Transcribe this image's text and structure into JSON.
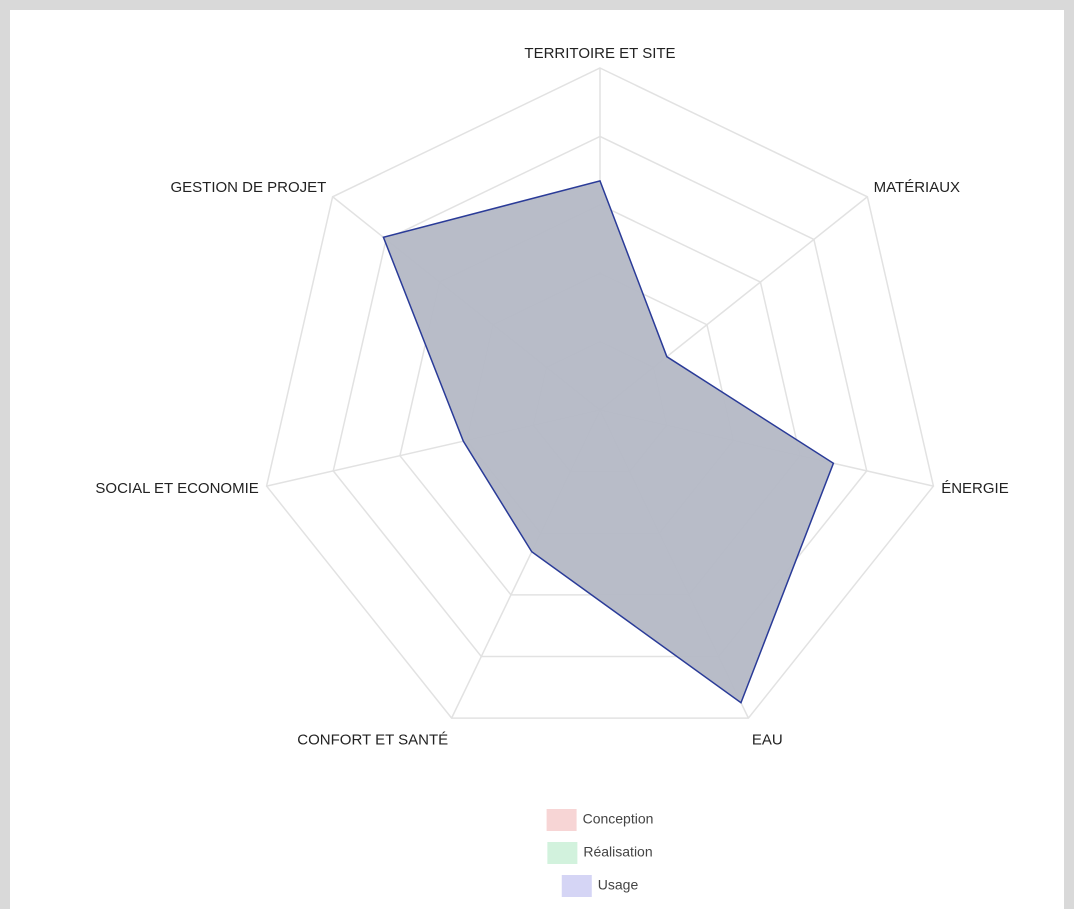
{
  "chart_data": {
    "type": "radar",
    "categories": [
      "TERRITOIRE ET SITE",
      "MATÉRIAUX",
      "ÉNERGIE",
      "EAU",
      "CONFORT ET SANTÉ",
      "SOCIAL ET ECONOMIE",
      "GESTION DE PROJET"
    ],
    "rlim": [
      0,
      100
    ],
    "rticks": [
      20,
      40,
      60,
      80,
      100
    ],
    "grid": true,
    "legend": "bottom",
    "series": [
      {
        "name": "Conception",
        "color": "#f7d5d5",
        "values": [
          0,
          0,
          0,
          0,
          0,
          0,
          0
        ]
      },
      {
        "name": "Réalisation",
        "color": "#d2f2dd",
        "values": [
          0,
          0,
          0,
          0,
          0,
          0,
          0
        ]
      },
      {
        "name": "Usage",
        "color": "#d5d5f5",
        "fill_color": "#b4b8c5",
        "line_color": "#2a3b98",
        "values": [
          67,
          25,
          70,
          95,
          46,
          41,
          81
        ]
      }
    ]
  }
}
